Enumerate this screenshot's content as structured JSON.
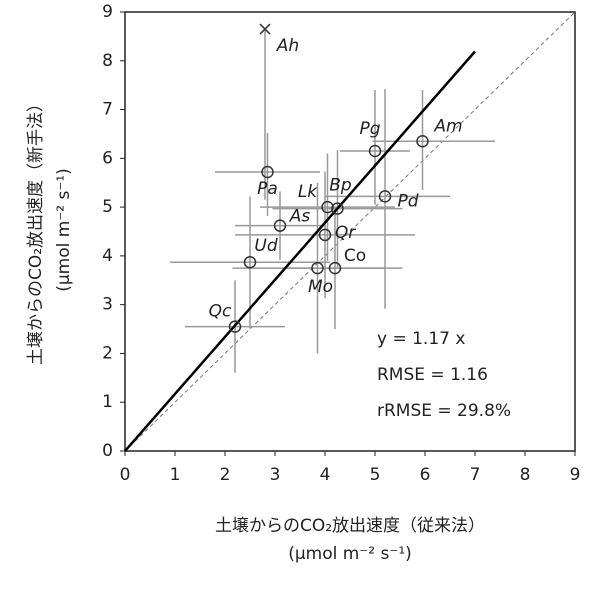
{
  "chart_data": {
    "type": "scatter",
    "x_label": "土壌からのCO₂放出速度（従来法）",
    "x_unit": "(μmol m⁻² s⁻¹)",
    "y_label": "土壌からのCO₂放出速度（新手法）",
    "y_unit": "(μmol m⁻² s⁻¹)",
    "xlim": [
      0,
      9
    ],
    "ylim": [
      0,
      9
    ],
    "xticks": [
      0,
      1,
      2,
      3,
      4,
      5,
      6,
      7,
      8,
      9
    ],
    "yticks": [
      0,
      1,
      2,
      3,
      4,
      5,
      6,
      7,
      8,
      9
    ],
    "points": [
      "Ah",
      "Pa",
      "Pg",
      "Am",
      "Lk",
      "Bp",
      "Pd",
      "As",
      "Qr",
      "Ud",
      "Mo",
      "Co",
      "Qc"
    ],
    "markers": [
      "x",
      "o",
      "o",
      "o",
      "o",
      "o",
      "o",
      "o",
      "o",
      "o",
      "o",
      "o",
      "o"
    ],
    "x": [
      2.8,
      2.85,
      5.0,
      5.95,
      4.05,
      4.25,
      5.2,
      3.1,
      4.0,
      2.5,
      3.85,
      4.2,
      2.2
    ],
    "y": [
      8.65,
      5.72,
      6.15,
      6.35,
      5.0,
      4.97,
      5.22,
      4.62,
      4.43,
      3.87,
      3.75,
      3.75,
      2.55
    ],
    "xerr": [
      [
        0,
        0
      ],
      [
        1.05,
        1.05
      ],
      [
        0.7,
        0.7
      ],
      [
        1.0,
        1.45
      ],
      [
        1.35,
        1.35
      ],
      [
        1.3,
        1.3
      ],
      [
        1.2,
        1.3
      ],
      [
        0.9,
        0.9
      ],
      [
        1.8,
        1.8
      ],
      [
        1.6,
        1.6
      ],
      [
        1.7,
        1.7
      ],
      [
        1.0,
        1.0
      ],
      [
        1.0,
        1.0
      ]
    ],
    "yerr": [
      [
        3.5,
        0
      ],
      [
        0.9,
        0.8
      ],
      [
        1.1,
        1.25
      ],
      [
        1.0,
        1.05
      ],
      [
        1.1,
        1.1
      ],
      [
        1.2,
        1.2
      ],
      [
        2.3,
        2.2
      ],
      [
        0.7,
        0.7
      ],
      [
        1.3,
        1.3
      ],
      [
        1.35,
        1.35
      ],
      [
        1.75,
        1.75
      ],
      [
        1.25,
        1.25
      ],
      [
        0.95,
        0.95
      ]
    ],
    "marker_color": "#333333",
    "error_color": "#999999",
    "fit": {
      "slope": 1.17,
      "x_range": [
        0,
        7
      ]
    },
    "identity_line": true,
    "annotations": [
      "y = 1.17 x",
      "RMSE = 1.16",
      "rRMSE = 29.8%"
    ]
  }
}
